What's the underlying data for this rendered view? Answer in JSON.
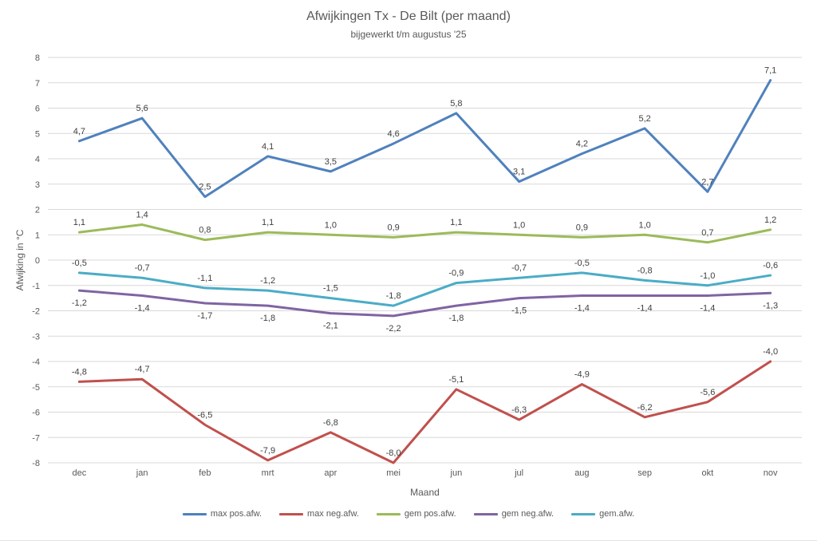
{
  "chart_data": {
    "type": "line",
    "title": "Afwijkingen Tx - De Bilt (per maand)",
    "subtitle": "bijgewerkt t/m augustus '25",
    "xlabel": "Maand",
    "ylabel": "Afwijking in °C",
    "categories": [
      "dec",
      "jan",
      "feb",
      "mrt",
      "apr",
      "mei",
      "jun",
      "jul",
      "aug",
      "sep",
      "okt",
      "nov"
    ],
    "series": [
      {
        "name": "max pos.afw.",
        "color": "#4F81BD",
        "label_position": "above",
        "values": [
          4.7,
          5.6,
          2.5,
          4.1,
          3.5,
          4.6,
          5.8,
          3.1,
          4.2,
          5.2,
          2.7,
          7.1
        ]
      },
      {
        "name": "max neg.afw.",
        "color": "#C0504D",
        "label_position": "above",
        "values": [
          -4.8,
          -4.7,
          -6.5,
          -7.9,
          -6.8,
          -8.0,
          -5.1,
          -6.3,
          -4.9,
          -6.2,
          -5.6,
          -4.0
        ]
      },
      {
        "name": "gem pos.afw.",
        "color": "#9BBB59",
        "label_position": "above",
        "values": [
          1.1,
          1.4,
          0.8,
          1.1,
          1.0,
          0.9,
          1.1,
          1.0,
          0.9,
          1.0,
          0.7,
          1.2
        ]
      },
      {
        "name": "gem neg.afw.",
        "color": "#8064A2",
        "label_position": "below",
        "values": [
          -1.2,
          -1.4,
          -1.7,
          -1.8,
          -2.1,
          -2.2,
          -1.8,
          -1.5,
          -1.4,
          -1.4,
          -1.4,
          -1.3
        ]
      },
      {
        "name": "gem.afw.",
        "color": "#4BACC6",
        "label_position": "above",
        "values": [
          -0.5,
          -0.7,
          -1.1,
          -1.2,
          -1.5,
          -1.8,
          -0.9,
          -0.7,
          -0.5,
          -0.8,
          -1.0,
          -0.6
        ]
      }
    ],
    "ylim": [
      -8,
      8
    ],
    "ytick_step": 1,
    "grid": true,
    "legend_position": "bottom",
    "decimal_separator": ",",
    "grid_color": "#d9d9d9",
    "axis_text_color": "#595959",
    "data_label_color": "#404040"
  }
}
